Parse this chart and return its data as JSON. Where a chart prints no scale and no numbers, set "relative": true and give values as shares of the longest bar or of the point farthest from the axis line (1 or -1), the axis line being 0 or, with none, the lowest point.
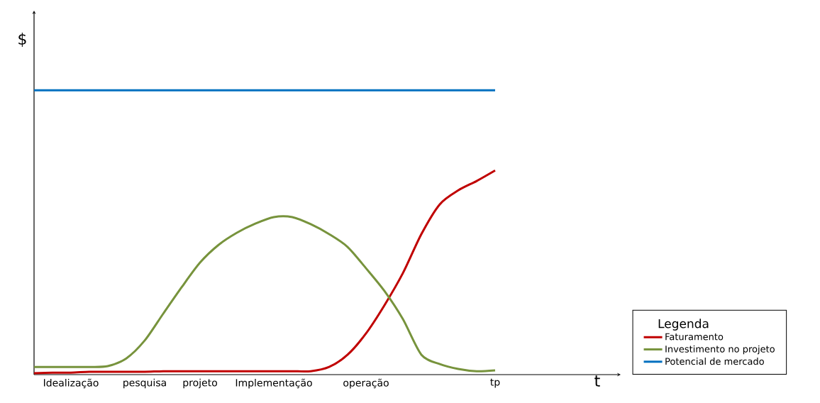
{
  "chart_data": {
    "type": "line",
    "relative": true,
    "annotations": [
      "t"
    ],
    "ylabel": "$",
    "legend_title": "Legenda",
    "legend": "right",
    "categories": [
      null,
      null,
      "Idealização",
      null,
      null,
      null,
      "pesquisa",
      null,
      null,
      "projeto",
      null,
      null,
      null,
      "Implementação",
      null,
      null,
      null,
      null,
      "operação",
      null,
      null,
      null,
      null,
      null,
      null,
      "tp"
    ],
    "series": [
      {
        "name": "Faturamento",
        "color": "#c00000",
        "values": [
          0.005,
          0.007,
          0.007,
          0.01,
          0.01,
          0.01,
          0.01,
          0.012,
          0.012,
          0.012,
          0.012,
          0.012,
          0.012,
          0.012,
          0.012,
          0.012,
          0.027,
          0.07,
          0.145,
          0.244,
          0.357,
          0.494,
          0.599,
          0.648,
          0.681,
          0.718
        ]
      },
      {
        "name": "Investimento no projeto",
        "color": "#77933c",
        "values": [
          0.027,
          0.027,
          0.027,
          0.027,
          0.03,
          0.057,
          0.12,
          0.214,
          0.307,
          0.394,
          0.456,
          0.499,
          0.531,
          0.554,
          0.554,
          0.529,
          0.494,
          0.449,
          0.374,
          0.294,
          0.195,
          0.07,
          0.037,
          0.02,
          0.012,
          0.015
        ]
      },
      {
        "name": "Potencial de mercado",
        "color": "#0070c0",
        "values": [
          1,
          1,
          1,
          1,
          1,
          1,
          1,
          1,
          1,
          1,
          1,
          1,
          1,
          1,
          1,
          1,
          1,
          1,
          1,
          1,
          1,
          1,
          1,
          1,
          1,
          1
        ]
      }
    ]
  }
}
